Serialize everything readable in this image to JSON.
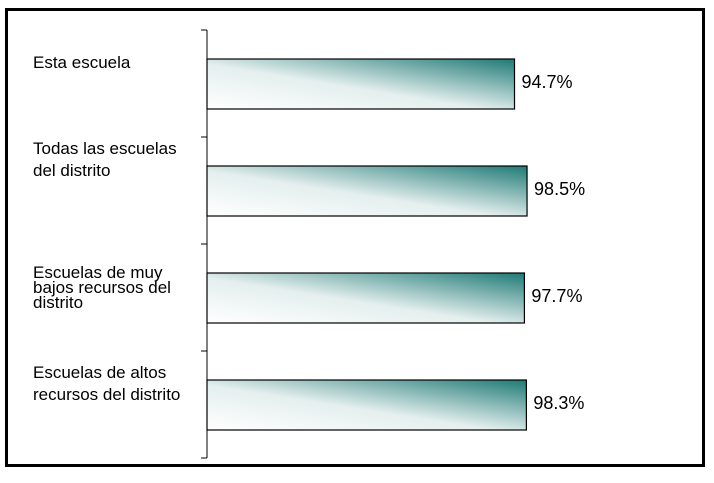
{
  "chart_data": {
    "type": "bar",
    "orientation": "horizontal",
    "categories": [
      [
        "Esta escuela"
      ],
      [
        "Todas las escuelas",
        "del distrito"
      ],
      [
        "Escuelas de muy",
        "bajos recursos del",
        "distrito"
      ],
      [
        "Escuelas de altos",
        "recursos del distrito"
      ]
    ],
    "values": [
      94.7,
      98.5,
      97.7,
      98.3
    ],
    "value_labels": [
      "94.7%",
      "98.5%",
      "97.7%",
      "98.3%"
    ],
    "xlim": [
      0,
      100
    ],
    "grid": false,
    "legend": "none",
    "bar_gradient": {
      "from": "#ffffff",
      "to": "#1f7a76"
    },
    "bar_stroke": "#000000"
  }
}
